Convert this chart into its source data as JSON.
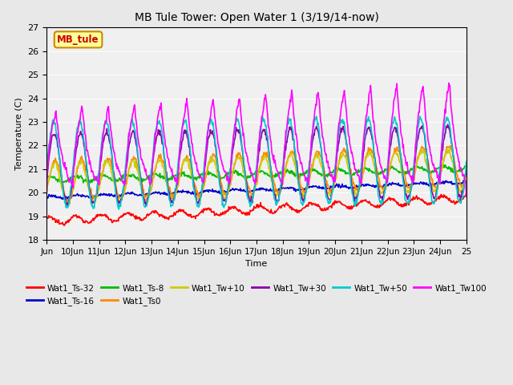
{
  "title": "MB Tule Tower: Open Water 1 (3/19/14-now)",
  "xlabel": "Time",
  "ylabel": "Temperature (C)",
  "ylim": [
    18.0,
    27.0
  ],
  "yticks": [
    18.0,
    19.0,
    20.0,
    21.0,
    22.0,
    23.0,
    24.0,
    25.0,
    26.0,
    27.0
  ],
  "xtick_labels": [
    "Jun",
    "10Jun",
    "11Jun",
    "12Jun",
    "13Jun",
    "14Jun",
    "15Jun",
    "16Jun",
    "17Jun",
    "18Jun",
    "19Jun",
    "20Jun",
    "21Jun",
    "22Jun",
    "23Jun",
    "24Jun",
    "25"
  ],
  "annotation_text": "MB_tule",
  "annotation_color": "#cc0000",
  "annotation_bg": "#ffff99",
  "annotation_border": "#cc8800",
  "series_colors": {
    "Wat1_Ts-32": "#ff0000",
    "Wat1_Ts-16": "#0000cc",
    "Wat1_Ts-8": "#00bb00",
    "Wat1_Ts0": "#ff8800",
    "Wat1_Tw+10": "#cccc00",
    "Wat1_Tw+30": "#8800aa",
    "Wat1_Tw+50": "#00cccc",
    "Wat1_Tw100": "#ff00ff"
  },
  "lw": 1.2,
  "bg_color": "#e8e8e8",
  "plot_bg": "#f0f0f0"
}
